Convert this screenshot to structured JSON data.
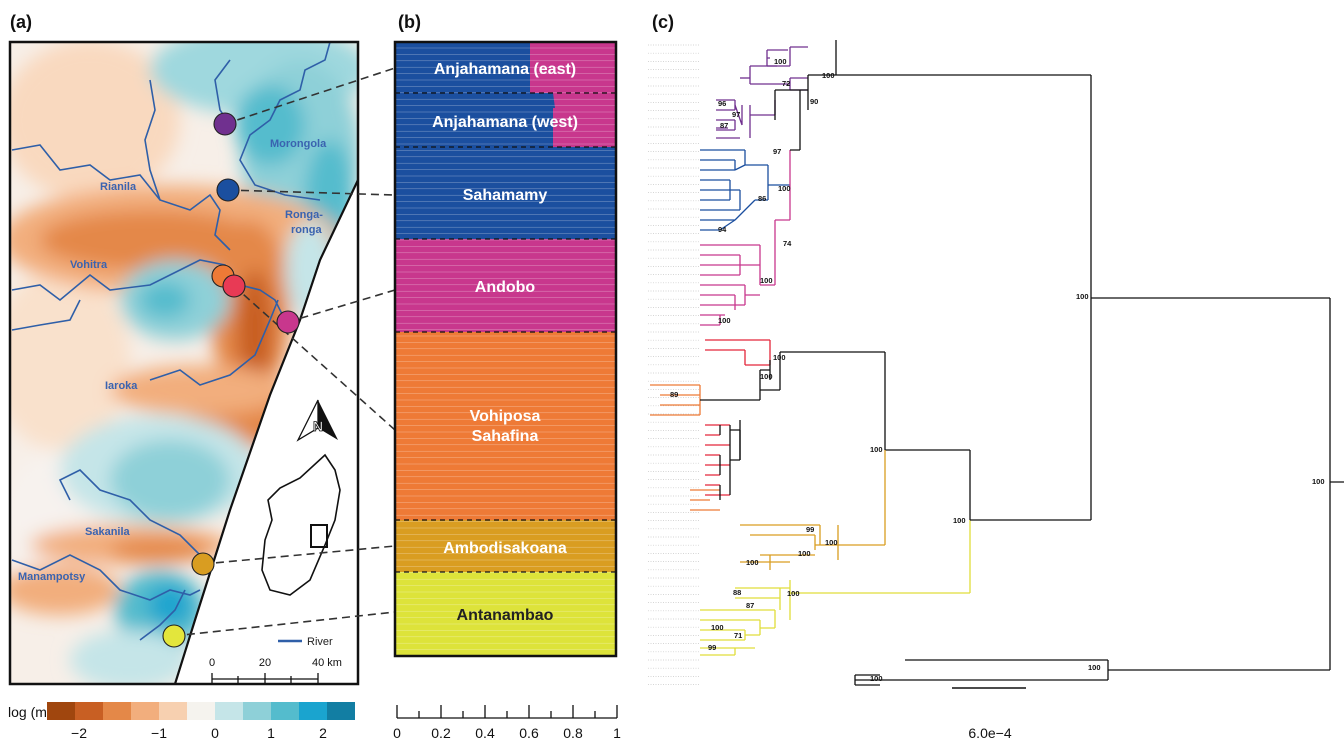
{
  "panel_labels": [
    "(a)",
    "(b)",
    "(c)"
  ],
  "map": {
    "rivers": [
      "Morongola",
      "Rianila",
      "Ronga-",
      "ronga",
      "Vohitra",
      "Iaroka",
      "Sakanila",
      "Manampotsy"
    ],
    "legend_river": "River",
    "scale_ticks": [
      "0",
      "20",
      "40 km"
    ],
    "colorbar_label": "log (m)",
    "colorbar_ticks": [
      "−2",
      "−1",
      "0",
      "1",
      "2"
    ],
    "colorbar_colors": [
      "#a0460e",
      "#c85f23",
      "#e48848",
      "#f2ae7d",
      "#f7d0b0",
      "#f5f3ee",
      "#c5e5e8",
      "#8ed0d8",
      "#54bccd",
      "#1aa4cf",
      "#127ea3"
    ],
    "site_colors": [
      "#70308f",
      "#1b4f9f",
      "#ee7a36",
      "#e83a55",
      "#c8378d",
      "#d99d21",
      "#e3e63c"
    ]
  },
  "structure": {
    "populations": [
      "Anjahamana (east)",
      "Anjahamana (west)",
      "Sahamamy",
      "Andobo",
      "Vohiposa",
      "Sahafina",
      "Ambodisakoana",
      "Antanambao"
    ],
    "axis_ticks": [
      "0",
      "0.2",
      "0.4",
      "0.6",
      "0.8",
      "1"
    ],
    "cluster_colors": {
      "blue": "#1b4f9f",
      "magenta": "#c8378d",
      "orange": "#ee7a36",
      "gold": "#d99d21",
      "yellow": "#dde33a"
    }
  },
  "tree": {
    "bootstrap_labels": [
      "100",
      "72",
      "90",
      "100",
      "96",
      "97",
      "87",
      "97",
      "100",
      "86",
      "94",
      "74",
      "100",
      "100",
      "100",
      "100",
      "89",
      "100",
      "100",
      "99",
      "100",
      "100",
      "100",
      "88",
      "100",
      "87",
      "100",
      "71",
      "99",
      "100",
      "100",
      "100",
      "100"
    ],
    "scale_bar": "6.0e−4",
    "clade_colors": {
      "purple": "#70308f",
      "blue": "#1b4f9f",
      "magenta": "#c8378d",
      "red": "#e3263a",
      "orange": "#ee7a36",
      "gold": "#d99d21",
      "yellow": "#e0dd3a",
      "black": "#111111"
    }
  }
}
